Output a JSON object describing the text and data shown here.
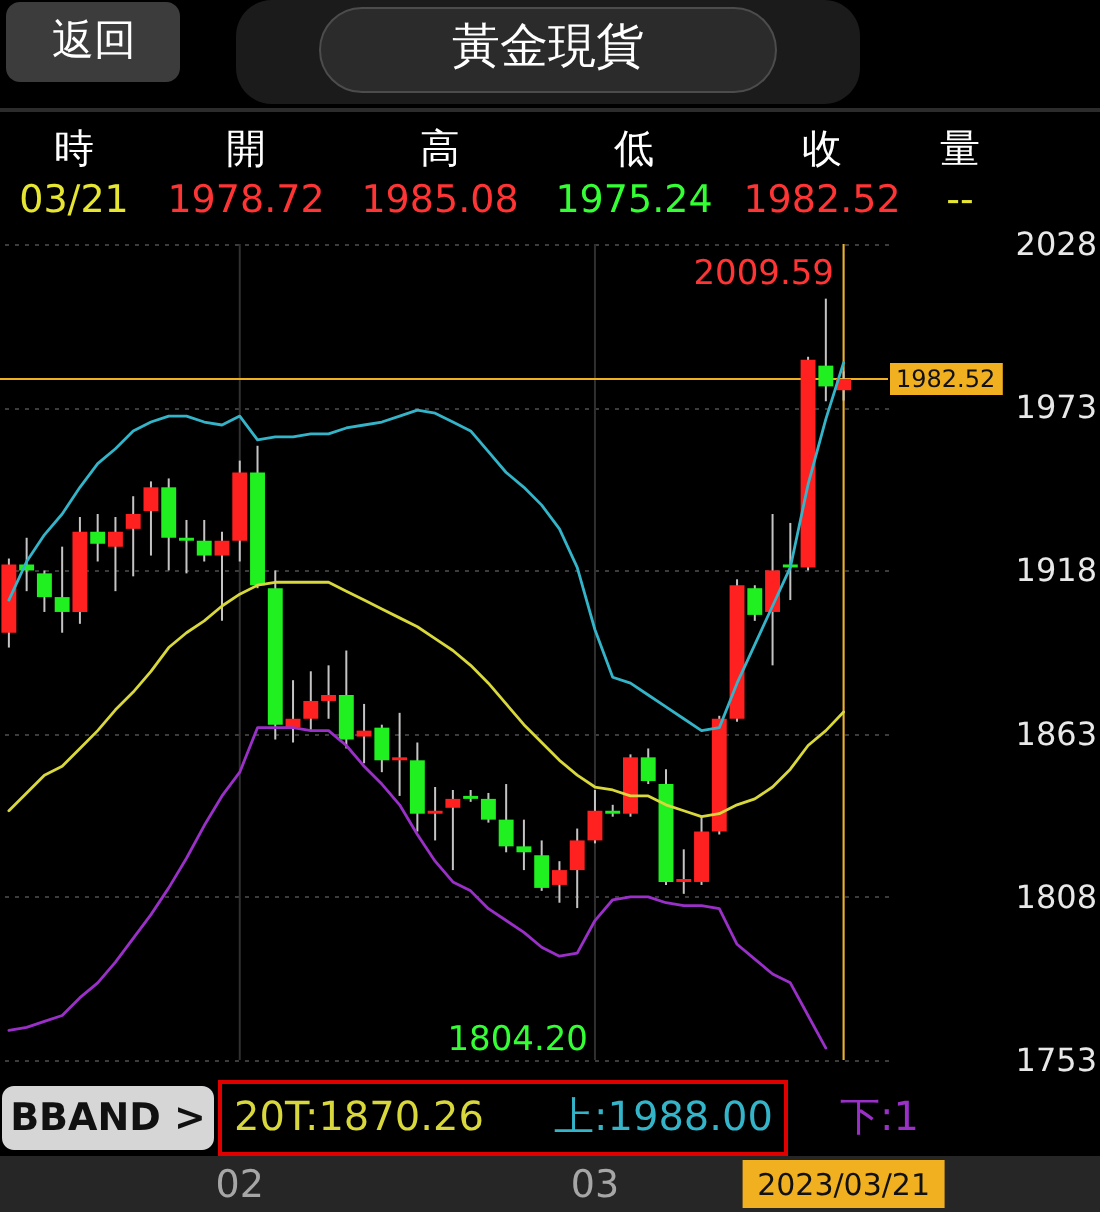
{
  "chart_data": {
    "type": "candlestick",
    "title": "黃金現貨",
    "categories": [
      null,
      null,
      null,
      null,
      null,
      null,
      null,
      null,
      null,
      null,
      null,
      null,
      null,
      "02",
      null,
      null,
      null,
      null,
      null,
      null,
      null,
      null,
      null,
      null,
      null,
      null,
      null,
      null,
      null,
      null,
      null,
      null,
      null,
      "03",
      null,
      null,
      null,
      null,
      null,
      null,
      null,
      null,
      null,
      null,
      null,
      null,
      null,
      "2023/03/21"
    ],
    "ohlc": [
      [
        1897,
        1922,
        1892,
        1920
      ],
      [
        1920,
        1929,
        1911,
        1918
      ],
      [
        1917,
        1918,
        1904,
        1909
      ],
      [
        1909,
        1926,
        1897,
        1904
      ],
      [
        1904,
        1936,
        1900,
        1931
      ],
      [
        1931,
        1937,
        1921,
        1927
      ],
      [
        1926,
        1936,
        1911,
        1931
      ],
      [
        1932,
        1943,
        1916,
        1937
      ],
      [
        1938,
        1948,
        1923,
        1946
      ],
      [
        1946,
        1949,
        1918,
        1929
      ],
      [
        1929,
        1935,
        1917,
        1928
      ],
      [
        1928,
        1935,
        1921,
        1923
      ],
      [
        1923,
        1931,
        1901,
        1928
      ],
      [
        1928,
        1955,
        1921,
        1951
      ],
      [
        1951,
        1960,
        1912,
        1913
      ],
      [
        1912,
        1918,
        1861,
        1866
      ],
      [
        1865,
        1881,
        1860,
        1868
      ],
      [
        1868,
        1884,
        1864,
        1874
      ],
      [
        1874,
        1886,
        1868,
        1876
      ],
      [
        1876,
        1891,
        1858,
        1861
      ],
      [
        1862,
        1873,
        1853,
        1864
      ],
      [
        1865,
        1866,
        1850,
        1854
      ],
      [
        1854,
        1870,
        1842,
        1855
      ],
      [
        1854,
        1860,
        1830,
        1836
      ],
      [
        1836,
        1845,
        1827,
        1837
      ],
      [
        1838,
        1844,
        1817,
        1841
      ],
      [
        1842,
        1844,
        1840,
        1841
      ],
      [
        1841,
        1843,
        1833,
        1834
      ],
      [
        1834,
        1846,
        1823,
        1825
      ],
      [
        1825,
        1834,
        1817,
        1823
      ],
      [
        1822,
        1827,
        1810,
        1811
      ],
      [
        1812,
        1820,
        1806,
        1817
      ],
      [
        1817,
        1831,
        1804.2,
        1827
      ],
      [
        1827,
        1844,
        1826,
        1837
      ],
      [
        1837,
        1839,
        1835,
        1836
      ],
      [
        1836,
        1856,
        1835,
        1855
      ],
      [
        1855,
        1858,
        1846,
        1847
      ],
      [
        1846,
        1851,
        1812,
        1813
      ],
      [
        1813,
        1824,
        1809,
        1814
      ],
      [
        1813,
        1835,
        1812,
        1830
      ],
      [
        1830,
        1869,
        1829,
        1868
      ],
      [
        1868,
        1915,
        1867,
        1913
      ],
      [
        1912,
        1913,
        1901,
        1903
      ],
      [
        1904,
        1937,
        1886,
        1918
      ],
      [
        1920,
        1934,
        1908,
        1919
      ],
      [
        1919,
        1990,
        1918,
        1989
      ],
      [
        1987,
        2009.59,
        1975,
        1980
      ],
      [
        1978.72,
        1985.08,
        1975.24,
        1982.52
      ]
    ],
    "colors": [
      "#ff2020",
      "#20f020",
      "#20f020",
      "#20f020",
      "#ff2020",
      "#20f020",
      "#ff2020",
      "#ff2020",
      "#ff2020",
      "#20f020",
      "#20f020",
      "#20f020",
      "#ff2020",
      "#ff2020",
      "#20f020",
      "#20f020",
      "#ff2020",
      "#ff2020",
      "#ff2020",
      "#20f020",
      "#ff2020",
      "#20f020",
      "#ff2020",
      "#20f020",
      "#ff2020",
      "#ff2020",
      "#20f020",
      "#20f020",
      "#20f020",
      "#20f020",
      "#20f020",
      "#ff2020",
      "#ff2020",
      "#ff2020",
      "#20f020",
      "#ff2020",
      "#20f020",
      "#20f020",
      "#ff2020",
      "#ff2020",
      "#ff2020",
      "#ff2020",
      "#20f020",
      "#ff2020",
      "#20f020",
      "#ff2020",
      "#20f020",
      "#ff2020"
    ],
    "series": [
      {
        "type": "line",
        "color": "#d8d83c",
        "values": [
          1837,
          1843,
          1849,
          1852,
          1858,
          1864,
          1871,
          1877,
          1884,
          1892,
          1897,
          1901,
          1906,
          1910,
          1913,
          1914,
          1914,
          1914,
          1914,
          1911,
          1908,
          1905,
          1902,
          1899,
          1895,
          1891,
          1886,
          1880,
          1873,
          1866,
          1860,
          1854,
          1849,
          1845,
          1844,
          1842,
          1842,
          1839,
          1837,
          1835,
          1836,
          1839,
          1841,
          1845,
          1851,
          1859,
          1864,
          1870.26
        ]
      },
      {
        "type": "line",
        "color": "#34b4c8",
        "values": [
          1908,
          1921,
          1930,
          1937,
          1946,
          1954,
          1959,
          1965,
          1968,
          1970,
          1970,
          1968,
          1967,
          1970,
          1962,
          1963,
          1963,
          1964,
          1964,
          1966,
          1967,
          1968,
          1970,
          1972,
          1971,
          1968,
          1965,
          1958,
          1951,
          1946,
          1940,
          1932,
          1919,
          1898,
          1882,
          1880,
          1876,
          1872,
          1868,
          1864,
          1865,
          1880,
          1893,
          1906,
          1919,
          1947,
          1969,
          1988.0
        ]
      },
      {
        "type": "line",
        "color": "#9a30c8",
        "values": [
          1763,
          1764,
          1766,
          1768,
          1774,
          1779,
          1786,
          1794,
          1802,
          1811,
          1821,
          1832,
          1842,
          1850,
          1865,
          1865,
          1865,
          1864,
          1864,
          1859,
          1852,
          1846,
          1839,
          1829,
          1820,
          1813,
          1810,
          1804,
          1800,
          1796,
          1791,
          1788,
          1789,
          1800,
          1807,
          1808,
          1808,
          1806,
          1805,
          1805,
          1804,
          1792,
          1787,
          1782,
          1779,
          1768,
          1757,
          null
        ]
      }
    ],
    "ylim": [
      1753,
      2028
    ],
    "yticks": [
      1753,
      1808,
      1863,
      1918,
      1973,
      2028
    ],
    "grid": true,
    "ref_lines": [
      {
        "axis": "y",
        "value": 1982.52,
        "label": "1982.52",
        "color": "#f0b020"
      },
      {
        "axis": "x",
        "value": "2023/03/21",
        "color": "#f0b020"
      }
    ],
    "annotations": [
      "返回",
      "時",
      "開",
      "高",
      "低",
      "收",
      "量",
      "03/21",
      "1978.72",
      "1985.08",
      "1975.24",
      "1982.52",
      "--",
      "BBAND >",
      "20T:1870.26",
      "上:1988.00",
      "下:1",
      "2009.59",
      "1804.20"
    ]
  }
}
